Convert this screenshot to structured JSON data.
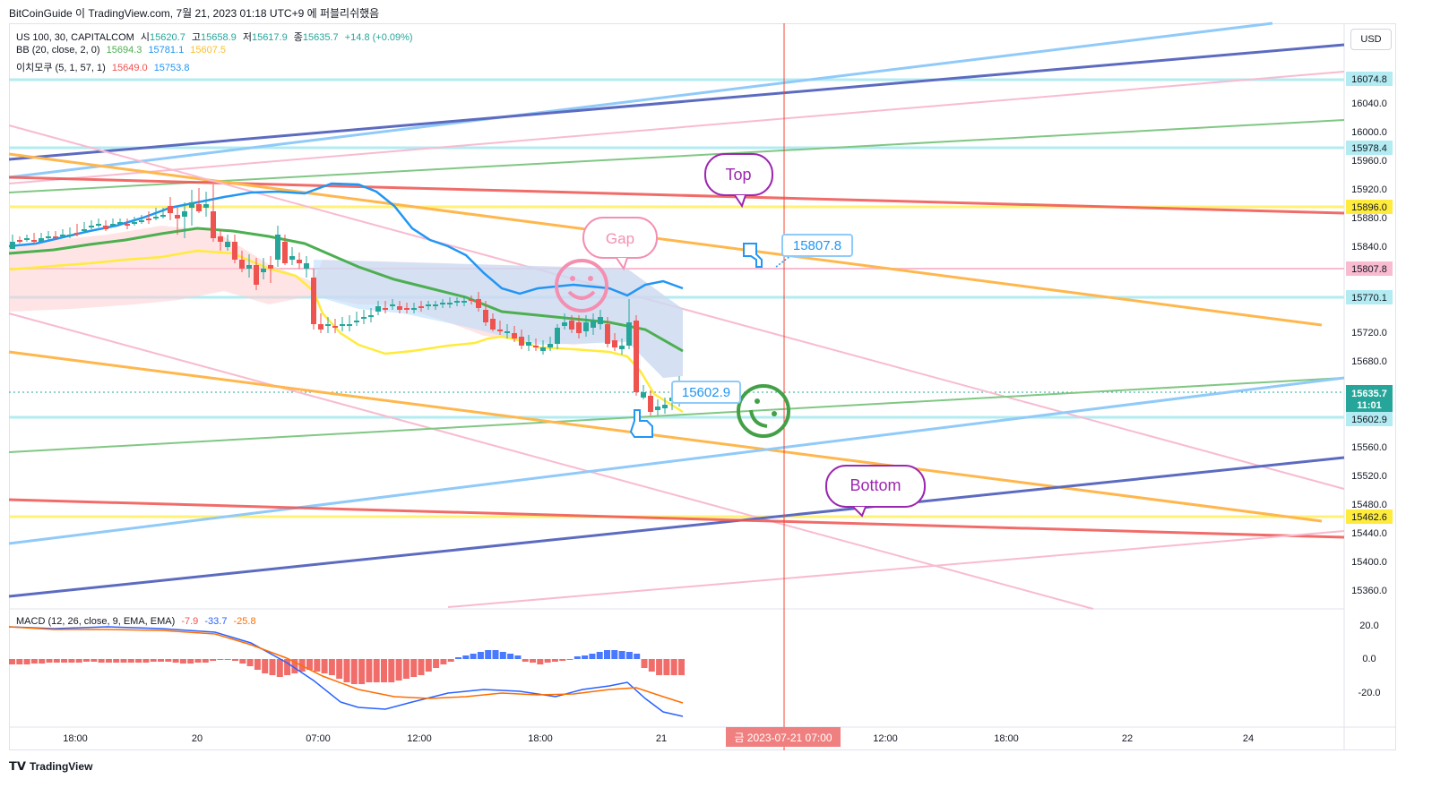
{
  "caption": "BitCoinGuide 이 TradingView.com, 7월 21, 2023 01:18 UTC+9 에 퍼블리쉬했음",
  "legend": {
    "symbol": "US 100, 30, CAPITALCOM",
    "open_label": "시",
    "open": "15620.7",
    "high_label": "고",
    "high": "15658.9",
    "low_label": "저",
    "low": "15617.9",
    "close_label": "종",
    "close": "15635.7",
    "change": "+14.8 (+0.09%)",
    "bb_label": "BB (20, close, 2, 0)",
    "bb_basis": "15694.3",
    "bb_upper": "15781.1",
    "bb_lower": "15607.5",
    "ichimoku_label": "이치모쿠 (5, 1, 57, 1)",
    "ichi_a": "15649.0",
    "ichi_b": "15753.8",
    "macd_label": "MACD (12, 26, close, 9, EMA, EMA)",
    "macd_hist": "-7.9",
    "macd": "-33.7",
    "macd_signal": "-25.8"
  },
  "currency_button": "USD",
  "price_axis": [
    "16040.0",
    "16000.0",
    "15960.0",
    "15920.0",
    "15880.0",
    "15840.0",
    "15720.0",
    "15680.0",
    "15560.0",
    "15520.0",
    "15480.0",
    "15440.0",
    "15400.0",
    "15360.0"
  ],
  "price_labels": [
    {
      "text": "16074.8",
      "bg": "#b2ebf2",
      "color": "#131722"
    },
    {
      "text": "15978.4",
      "bg": "#b2ebf2",
      "color": "#131722"
    },
    {
      "text": "15896.0",
      "bg": "#ffeb3b",
      "color": "#131722"
    },
    {
      "text": "15807.8",
      "bg": "#f8bbd0",
      "color": "#131722"
    },
    {
      "text": "15770.1",
      "bg": "#b2ebf2",
      "color": "#131722"
    },
    {
      "text": "15602.9",
      "bg": "#b2ebf2",
      "color": "#131722"
    },
    {
      "text": "15462.6",
      "bg": "#ffeb3b",
      "color": "#131722"
    }
  ],
  "current_price": {
    "price": "15635.7",
    "countdown": "11:01"
  },
  "macd_axis": [
    "20.0",
    "0.0",
    "-20.0"
  ],
  "time_axis": [
    "18:00",
    "20",
    "07:00",
    "12:00",
    "18:00",
    "21",
    "12:00",
    "18:00",
    "22",
    "24"
  ],
  "crosshair_time": "금 2023-07-21  07:00",
  "annotations": {
    "top": "Top",
    "gap": "Gap",
    "bottom": "Bottom",
    "price_note_1": "15807.8",
    "price_note_2": "15602.9"
  },
  "footer_brand": "TradingView",
  "colors": {
    "up": "#26a69a",
    "down": "#ef5350",
    "bb_basis": "#4caf50",
    "bb_upper": "#2196f3",
    "bb_lower": "#ffeb3b",
    "orange": "#ffb74d",
    "navy": "#5c6bc0",
    "lightblue": "#90caf9",
    "pink": "#f8bbd0",
    "red": "#ef5350",
    "green": "#81c784",
    "purple": "#9c27b0"
  }
}
